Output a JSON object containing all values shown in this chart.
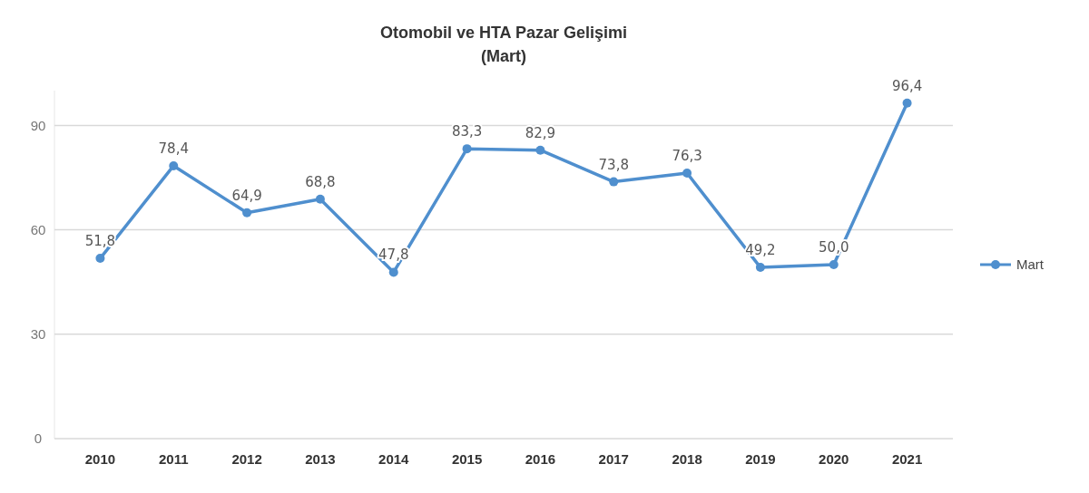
{
  "chart_data": {
    "type": "line",
    "title": "Otomobil ve HTA Pazar Gelişimi",
    "subtitle": "(Mart)",
    "categories": [
      "2010",
      "2011",
      "2012",
      "2013",
      "2014",
      "2015",
      "2016",
      "2017",
      "2018",
      "2019",
      "2020",
      "2021"
    ],
    "series": [
      {
        "name": "Mart",
        "color": "#4f8fce",
        "values": [
          51.8,
          78.4,
          64.9,
          68.8,
          47.8,
          83.3,
          82.9,
          73.8,
          76.3,
          49.2,
          50.0,
          96.4
        ],
        "value_labels": [
          "51,8",
          "78,4",
          "64,9",
          "68,8",
          "47,8",
          "83,3",
          "82,9",
          "73,8",
          "76,3",
          "49,2",
          "50,0",
          "96,4"
        ]
      }
    ],
    "ylim": [
      0,
      100
    ],
    "yticks": [
      0,
      30,
      60,
      90
    ],
    "grid": "y",
    "legend": "right",
    "marker": "circle",
    "line_style": "solid"
  }
}
